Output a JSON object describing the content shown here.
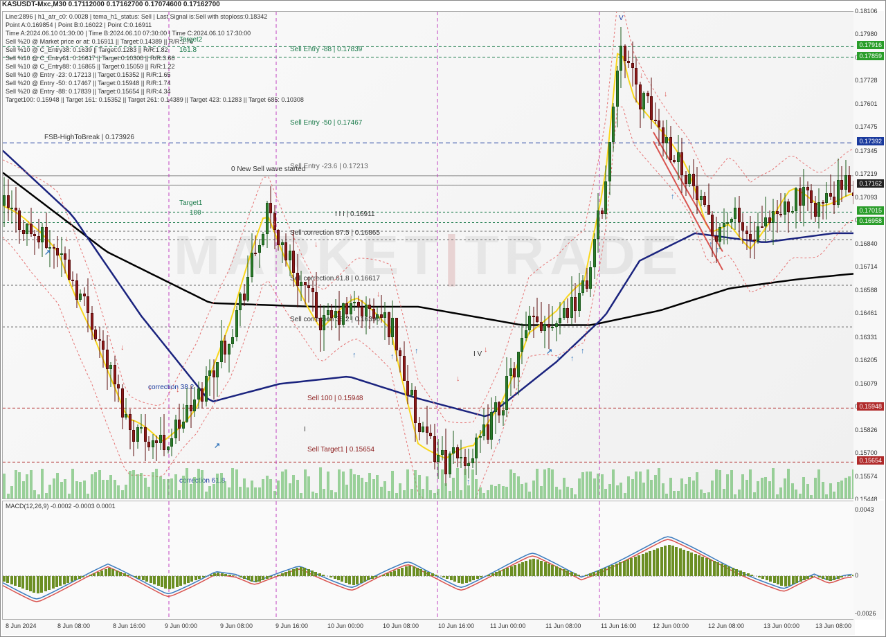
{
  "title": "KASUSDT-Mxc,M30  0.17112000  0.17162700  0.17074600  0.17162700",
  "info_lines": [
    "Line:2896  |  h1_atr_c0: 0.0028  |  tema_h1_status: Sell  |  Last Signal is:Sell with stoploss:0.18342",
    "Point A:0.169854  |  Point B:0.16022  |  Point C:0.16911",
    "Time A:2024.06.10 01:30:00  |  Time B:2024.06.10 07:30:00  |  Time C:2024.06.10 17:30:00",
    "Sell %20 @ Market price or at:  0.16911  ||  Target:0.14389  ||  R/R:1.76",
    "Sell %10 @ C_Entry38: 0.1639  ||  Target:0.1283  ||  R/R:1.82",
    "Sell %10 @ C_Entry61: 0.16617  ||  Target:0.10308  ||  R/R:3.66",
    "Sell %10 @ C_Entry88: 0.16865  ||  Target:0.15059  ||  R/R:1.22",
    "Sell %10 @ Entry -23: 0.17213  ||  Target:0.15352  ||  R/R:1.65",
    "Sell %20 @ Entry -50: 0.17467  ||  Target:0.15948  ||  R/R:1.74",
    "Sell %20 @ Entry -88: 0.17839  ||  Target:0.15654  ||  R/R:4.34",
    "Target100: 0.15948  ||  Target 161: 0.15352  ||  Target 261: 0.14389  ||  Target 423: 0.1283  ||  Target 685: 0.10308"
  ],
  "y_axis": {
    "min": 0.15448,
    "max": 0.18106,
    "ticks": [
      0.18106,
      0.1798,
      0.17854,
      0.17728,
      0.17601,
      0.17475,
      0.17345,
      0.17219,
      0.17093,
      0.16967,
      0.1684,
      0.16714,
      0.16588,
      0.16461,
      0.16331,
      0.16205,
      0.16079,
      0.15952,
      0.15826,
      0.157,
      0.15574,
      0.15448
    ]
  },
  "price_tags": [
    {
      "val": "0.17916",
      "y_price": 0.17916,
      "color": "#2a9d2a"
    },
    {
      "val": "0.17859",
      "y_price": 0.17859,
      "color": "#2a9d2a"
    },
    {
      "val": "0.17392",
      "y_price": 0.17392,
      "color": "#1a3a9d"
    },
    {
      "val": "0.17162",
      "y_price": 0.17162,
      "color": "#222222"
    },
    {
      "val": "0.17015",
      "y_price": 0.17015,
      "color": "#2a9d2a"
    },
    {
      "val": "0.16958",
      "y_price": 0.16958,
      "color": "#2a9d2a"
    },
    {
      "val": "0.15948",
      "y_price": 0.15948,
      "color": "#b02a2a"
    },
    {
      "val": "0.15654",
      "y_price": 0.15654,
      "color": "#b02a2a"
    }
  ],
  "x_axis": [
    {
      "label": "8 Jun 2024",
      "x": 10
    },
    {
      "label": "8 Jun 08:00",
      "x": 100
    },
    {
      "label": "8 Jun 16:00",
      "x": 200
    },
    {
      "label": "9 Jun 00:00",
      "x": 290
    },
    {
      "label": "9 Jun 08:00",
      "x": 385
    },
    {
      "label": "9 Jun 16:00",
      "x": 480
    },
    {
      "label": "10 Jun 00:00",
      "x": 570
    },
    {
      "label": "10 Jun 08:00",
      "x": 665
    },
    {
      "label": "10 Jun 16:00",
      "x": 760
    },
    {
      "label": "11 Jun 00:00",
      "x": 850
    },
    {
      "label": "11 Jun 08:00",
      "x": 945
    },
    {
      "label": "11 Jun 16:00",
      "x": 1040
    },
    {
      "label": "12 Jun 00:00",
      "x": 1130
    },
    {
      "label": "12 Jun 08:00",
      "x": 1225
    },
    {
      "label": "13 Jun 00:00",
      "x": 1320
    },
    {
      "label": "13 Jun 08:00",
      "x": 1415
    }
  ],
  "x_axis_display": [
    {
      "label": "8 Jun 2024",
      "x": 5
    },
    {
      "label": "8 Jun 08:00",
      "x": 80
    },
    {
      "label": "8 Jun 16:00",
      "x": 160
    },
    {
      "label": "9 Jun 00:00",
      "x": 235
    },
    {
      "label": "9 Jun 08:00",
      "x": 315
    },
    {
      "label": "9 Jun 16:00",
      "x": 395
    },
    {
      "label": "10 Jun 00:00",
      "x": 470
    },
    {
      "label": "10 Jun 08:00",
      "x": 550
    },
    {
      "label": "10 Jun 16:00",
      "x": 630
    },
    {
      "label": "11 Jun 00:00",
      "x": 705
    },
    {
      "label": "11 Jun 08:00",
      "x": 785
    },
    {
      "label": "11 Jun 16:00",
      "x": 865
    },
    {
      "label": "12 Jun 00:00",
      "x": 940
    },
    {
      "label": "12 Jun 08:00",
      "x": 1020
    },
    {
      "label": "13 Jun 00:00",
      "x": 1100
    },
    {
      "label": "13 Jun 08:00",
      "x": 1175
    }
  ],
  "chart_labels": [
    {
      "text": "Sell Entry -88 | 0.17839",
      "x": 415,
      "y_price": 0.179,
      "color": "#1a7a4a"
    },
    {
      "text": "Sell Entry -50 | 0.17467",
      "x": 415,
      "y_price": 0.175,
      "color": "#1a7a4a"
    },
    {
      "text": "Sell Entry -23.6 | 0.17213",
      "x": 415,
      "y_price": 0.1726,
      "color": "#666"
    },
    {
      "text": "0 New Sell wave started",
      "x": 330,
      "y_price": 0.17245,
      "color": "#333"
    },
    {
      "text": "I I I | 0.16911",
      "x": 480,
      "y_price": 0.17,
      "color": "#333"
    },
    {
      "text": "I I I",
      "x": 380,
      "y_price": 0.1699,
      "color": "#1a3a9d"
    },
    {
      "text": "Sell correction 87.5 | 0.16865",
      "x": 415,
      "y_price": 0.169,
      "color": "#333"
    },
    {
      "text": "Sell correction 61.8 | 0.16617",
      "x": 415,
      "y_price": 0.1665,
      "color": "#333"
    },
    {
      "text": "Sell correction 38.2 | 0.16390",
      "x": 415,
      "y_price": 0.16429,
      "color": "#333"
    },
    {
      "text": "Sell 100 | 0.15948",
      "x": 440,
      "y_price": 0.16,
      "color": "#8b1a1a"
    },
    {
      "text": "Sell Target1 | 0.15654",
      "x": 440,
      "y_price": 0.1572,
      "color": "#8b1a1a"
    },
    {
      "text": "Target1",
      "x": 255,
      "y_price": 0.1706,
      "color": "#1a7a4a"
    },
    {
      "text": "100",
      "x": 270,
      "y_price": 0.1701,
      "color": "#1a7a4a"
    },
    {
      "text": "Target2",
      "x": 255,
      "y_price": 0.1795,
      "color": "#1a7a4a"
    },
    {
      "text": "161.8",
      "x": 255,
      "y_price": 0.17895,
      "color": "#1a7a4a"
    },
    {
      "text": "FSB-HighToBreak  |  0.173926",
      "x": 60,
      "y_price": 0.1742,
      "color": "#333"
    },
    {
      "text": "I V",
      "x": 680,
      "y_price": 0.1624,
      "color": "#333"
    },
    {
      "text": "I",
      "x": 435,
      "y_price": 0.1583,
      "color": "#333"
    },
    {
      "text": "V",
      "x": 890,
      "y_price": 0.1807,
      "color": "#1a3a9d"
    },
    {
      "text": "correction 61.8",
      "x": 255,
      "y_price": 0.1555,
      "color": "#1a3a9d"
    },
    {
      "text": "correction 38.2",
      "x": 210,
      "y_price": 0.1606,
      "color": "#1a3a9d"
    }
  ],
  "hlines": [
    {
      "y_price": 0.17916,
      "color": "#1a7a4a",
      "dash": "4,3"
    },
    {
      "y_price": 0.17859,
      "color": "#1a7a4a",
      "dash": "4,3"
    },
    {
      "y_price": 0.17392,
      "color": "#1a3a9d",
      "dash": "6,4"
    },
    {
      "y_price": 0.17213,
      "color": "#888",
      "dash": "none"
    },
    {
      "y_price": 0.17162,
      "color": "#888",
      "dash": "none"
    },
    {
      "y_price": 0.17015,
      "color": "#1a7a4a",
      "dash": "3,3"
    },
    {
      "y_price": 0.16958,
      "color": "#1a7a4a",
      "dash": "3,3"
    },
    {
      "y_price": 0.16911,
      "color": "#666",
      "dash": "3,3"
    },
    {
      "y_price": 0.16865,
      "color": "#666",
      "dash": "3,3"
    },
    {
      "y_price": 0.16617,
      "color": "#666",
      "dash": "3,3"
    },
    {
      "y_price": 0.1639,
      "color": "#666",
      "dash": "3,3"
    },
    {
      "y_price": 0.15948,
      "color": "#b02a2a",
      "dash": "4,3"
    },
    {
      "y_price": 0.15654,
      "color": "#b02a2a",
      "dash": "4,3"
    }
  ],
  "vlines": [
    {
      "x": 240,
      "color": "#c040c0",
      "dash": "5,4"
    },
    {
      "x": 395,
      "color": "#c040c0",
      "dash": "5,4"
    },
    {
      "x": 628,
      "color": "#c040c0",
      "dash": "5,4"
    },
    {
      "x": 862,
      "color": "#c040c0",
      "dash": "5,4"
    }
  ],
  "macd": {
    "label": "MACD(12,26,9) -0.0002 -0.0003 0.0001",
    "y_ticks": [
      0.0043,
      0.0,
      -0.0026
    ],
    "zero_y": 108,
    "hist": [
      -8,
      -10,
      -12,
      -14,
      -16,
      -18,
      -20,
      -22,
      -24,
      -25,
      -24,
      -22,
      -20,
      -18,
      -16,
      -14,
      -12,
      -10,
      -8,
      -6,
      -4,
      -2,
      0,
      2,
      4,
      6,
      8,
      10,
      12,
      10,
      8,
      6,
      4,
      2,
      0,
      -2,
      -4,
      -6,
      -8,
      -10,
      -12,
      -14,
      -16,
      -18,
      -19,
      -18,
      -16,
      -14,
      -12,
      -10,
      -8,
      -6,
      -4,
      -2,
      0,
      2,
      4,
      5,
      4,
      3,
      2,
      1,
      0,
      -2,
      -4,
      -6,
      -8,
      -9,
      -8,
      -6,
      -4,
      -2,
      0,
      2,
      4,
      6,
      8,
      10,
      12,
      13,
      12,
      10,
      8,
      6,
      4,
      2,
      0,
      -2,
      -4,
      -6,
      -8,
      -10,
      -12,
      -13,
      -12,
      -10,
      -8,
      -6,
      -4,
      -2,
      0,
      2,
      4,
      6,
      8,
      10,
      12,
      14,
      15,
      14,
      12,
      10,
      8,
      6,
      4,
      2,
      0,
      -2,
      -4,
      -6,
      -8,
      -10,
      -11,
      -10,
      -8,
      -6,
      -4,
      -2,
      0,
      2,
      4,
      6,
      8,
      10,
      12,
      14,
      16,
      18,
      20,
      22,
      24,
      25,
      24,
      22,
      20,
      18,
      16,
      14,
      12,
      10,
      8,
      6,
      4,
      2,
      0,
      2,
      4,
      6,
      8,
      10,
      12,
      14,
      16,
      18,
      20,
      22,
      24,
      26,
      28,
      30,
      32,
      34,
      36,
      38,
      40,
      42,
      44,
      45,
      44,
      42,
      40,
      38,
      36,
      34,
      32,
      30,
      28,
      26,
      24,
      22,
      20,
      18,
      16,
      14,
      12,
      10,
      8,
      6,
      4,
      2,
      0,
      -2,
      -4,
      -6,
      -8,
      -10,
      -12,
      -14,
      -15,
      -14,
      -12,
      -10,
      -8,
      -6,
      -4,
      -2,
      0,
      -2,
      -4,
      -6,
      -7,
      -6,
      -4,
      -2,
      0,
      1,
      2
    ],
    "macd_line_color": "#3a7abd",
    "signal_line_color": "#d9534f"
  },
  "ma_colors": {
    "black_ma": "#000000",
    "blue_ma": "#1a237e",
    "yellow_ma": "#f9d71c",
    "psar_color": "#e57373"
  },
  "watermark_parts": {
    "a": "MARKET",
    "b": "TRADE"
  },
  "arrows": [
    {
      "x": 35,
      "y_price": 0.1695,
      "dir": "dn",
      "color": "#d9534f"
    },
    {
      "x": 90,
      "y_price": 0.1686,
      "dir": "dn",
      "color": "#d9534f"
    },
    {
      "x": 170,
      "y_price": 0.1627,
      "dir": "dn",
      "color": "#d9534f"
    },
    {
      "x": 210,
      "y_price": 0.1605,
      "dir": "dn",
      "color": "#d9534f"
    },
    {
      "x": 250,
      "y_price": 0.1604,
      "dir": "dn",
      "color": "#d9534f"
    },
    {
      "x": 390,
      "y_price": 0.1695,
      "dir": "dn",
      "color": "#d9534f"
    },
    {
      "x": 450,
      "y_price": 0.1683,
      "dir": "dn",
      "color": "#d9534f"
    },
    {
      "x": 500,
      "y_price": 0.1655,
      "dir": "dn",
      "color": "#d9534f"
    },
    {
      "x": 540,
      "y_price": 0.1656,
      "dir": "dn",
      "color": "#d9534f"
    },
    {
      "x": 655,
      "y_price": 0.161,
      "dir": "dn",
      "color": "#d9534f"
    },
    {
      "x": 695,
      "y_price": 0.1626,
      "dir": "dn",
      "color": "#d9534f"
    },
    {
      "x": 720,
      "y_price": 0.1594,
      "dir": "dn",
      "color": "#d9534f"
    },
    {
      "x": 920,
      "y_price": 0.1775,
      "dir": "dn",
      "color": "#d9534f"
    },
    {
      "x": 955,
      "y_price": 0.1765,
      "dir": "dn",
      "color": "#d9534f"
    },
    {
      "x": 305,
      "y_price": 0.1574,
      "dir": "dia",
      "color": "#3a7abd"
    },
    {
      "x": 60,
      "y_price": 0.1679,
      "dir": "dia",
      "color": "#3a7abd"
    },
    {
      "x": 505,
      "y_price": 0.1623,
      "dir": "up",
      "color": "#3a7abd"
    },
    {
      "x": 560,
      "y_price": 0.1622,
      "dir": "up",
      "color": "#3a7abd"
    },
    {
      "x": 595,
      "y_price": 0.1625,
      "dir": "up",
      "color": "#3a7abd"
    },
    {
      "x": 670,
      "y_price": 0.1554,
      "dir": "up",
      "color": "#3a7abd"
    },
    {
      "x": 715,
      "y_price": 0.1576,
      "dir": "up",
      "color": "#3a7abd"
    },
    {
      "x": 785,
      "y_price": 0.1625,
      "dir": "dia",
      "color": "#3a7abd"
    },
    {
      "x": 800,
      "y_price": 0.1621,
      "dir": "up",
      "color": "#3a7abd"
    },
    {
      "x": 820,
      "y_price": 0.1621,
      "dir": "up",
      "color": "#3a7abd"
    },
    {
      "x": 835,
      "y_price": 0.1625,
      "dir": "up",
      "color": "#3a7abd"
    },
    {
      "x": 965,
      "y_price": 0.1709,
      "dir": "up",
      "color": "#3a7abd"
    },
    {
      "x": 1020,
      "y_price": 0.1683,
      "dir": "up",
      "color": "#3a7abd"
    },
    {
      "x": 1030,
      "y_price": 0.168,
      "dir": "up",
      "color": "#3a7abd"
    }
  ],
  "candles_seed": 42
}
